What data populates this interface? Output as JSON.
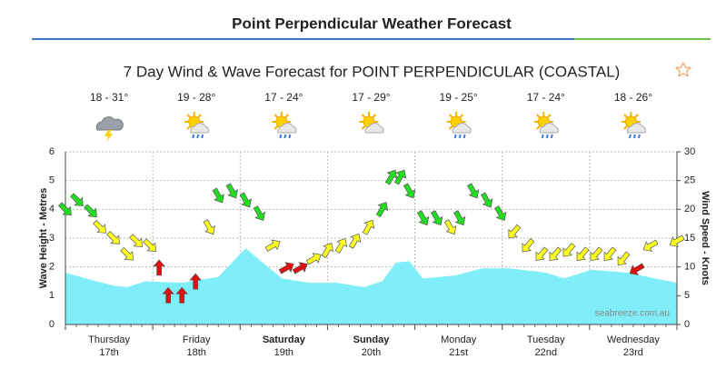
{
  "header": {
    "title": "Point Perpendicular Weather Forecast"
  },
  "chart_data": {
    "type": "wind-wave",
    "title": "7 Day Wind & Wave Forecast for POINT PERPENDICULAR (COASTAL)",
    "ylabel": "Wave Height - Metres",
    "y2label": "Wind Speed - Knots",
    "watermark": "seabreeze.com.au",
    "days": [
      {
        "name": "Thursday",
        "date": "17th",
        "temp": "18 - 31°",
        "bold": false,
        "icon": "storm"
      },
      {
        "name": "Friday",
        "date": "18th",
        "temp": "19 - 28°",
        "bold": false,
        "icon": "shower"
      },
      {
        "name": "Saturday",
        "date": "19th",
        "temp": "17 - 24°",
        "bold": true,
        "icon": "shower"
      },
      {
        "name": "Sunday",
        "date": "20th",
        "temp": "17 - 29°",
        "bold": true,
        "icon": "sun"
      },
      {
        "name": "Monday",
        "date": "21st",
        "temp": "19 - 25°",
        "bold": false,
        "icon": "shower"
      },
      {
        "name": "Tuesday",
        "date": "22nd",
        "temp": "17 - 24°",
        "bold": false,
        "icon": "shower"
      },
      {
        "name": "Wednesday",
        "date": "23rd",
        "temp": "18 - 26°",
        "bold": false,
        "icon": "shower"
      }
    ],
    "xlim": [
      0,
      168
    ],
    "xticks": [
      0,
      24,
      48,
      72,
      96,
      120,
      144,
      168
    ],
    "ylim": [
      0,
      6
    ],
    "yticks": [
      0,
      1,
      2,
      3,
      4,
      5,
      6
    ],
    "y2lim": [
      0,
      30
    ],
    "y2ticks": [
      0,
      5,
      10,
      15,
      20,
      25,
      30
    ],
    "grid": true,
    "series": [
      {
        "name": "Wave Height",
        "kind": "area",
        "color": "#80eef8",
        "x": [
          0,
          7,
          13.25,
          17,
          22,
          32,
          42,
          49.5,
          53.25,
          59.5,
          67,
          74.5,
          82,
          87,
          90.75,
          94.5,
          98.25,
          107,
          114.5,
          122,
          132,
          137,
          144.5,
          154.5,
          162,
          168
        ],
        "values": [
          1.8,
          1.55,
          1.35,
          1.3,
          1.5,
          1.45,
          1.65,
          2.65,
          2.25,
          1.6,
          1.45,
          1.45,
          1.3,
          1.5,
          2.15,
          2.2,
          1.6,
          1.7,
          1.95,
          1.95,
          1.8,
          1.6,
          1.9,
          1.8,
          1.6,
          1.45
        ]
      },
      {
        "name": "Wind Speed",
        "kind": "arrows",
        "axis": "y2",
        "x": [
          0,
          3.25,
          7,
          9.5,
          13.25,
          17,
          19.5,
          23.25,
          25.75,
          28.25,
          32,
          35.75,
          39.5,
          42,
          45.75,
          49.5,
          53.25,
          57,
          60.75,
          64.5,
          68.25,
          72,
          75.75,
          79.5,
          83.25,
          87,
          89.5,
          92,
          94.5,
          98.25,
          102,
          105.75,
          108.25,
          112,
          115.75,
          119.5,
          123.25,
          127,
          130.75,
          134.5,
          138.25,
          142,
          145.75,
          149.5,
          153.25,
          157,
          160.75,
          168
        ],
        "values": [
          20,
          21.6,
          19.7,
          16.9,
          15,
          12.2,
          14.5,
          13.7,
          9.8,
          5,
          5,
          7.4,
          16.9,
          22.4,
          23.2,
          21.6,
          19.3,
          13.7,
          9.8,
          9.8,
          11.4,
          12.9,
          13.7,
          14.5,
          16.9,
          20,
          25.6,
          25.6,
          23.2,
          18.5,
          18.5,
          16.9,
          18.5,
          23.2,
          21.6,
          19.3,
          16.1,
          13.7,
          12.2,
          12.2,
          12.9,
          12.2,
          12.2,
          12.2,
          11.4,
          9.6,
          13.7,
          14.5
        ],
        "directions": [
          135,
          135,
          135,
          135,
          135,
          135,
          135,
          135,
          0,
          0,
          0,
          0,
          150,
          150,
          150,
          150,
          150,
          60,
          60,
          60,
          60,
          30,
          30,
          30,
          30,
          30,
          30,
          30,
          150,
          150,
          150,
          150,
          150,
          150,
          150,
          150,
          220,
          220,
          220,
          220,
          220,
          220,
          220,
          220,
          220,
          240,
          240,
          240
        ],
        "colors": [
          "#22dd22",
          "#22dd22",
          "#22dd22",
          "#ffff22",
          "#ffff22",
          "#ffff22",
          "#ffff22",
          "#ffff22",
          "#e01010",
          "#e01010",
          "#e01010",
          "#e01010",
          "#ffff22",
          "#22dd22",
          "#22dd22",
          "#22dd22",
          "#22dd22",
          "#ffff22",
          "#e01010",
          "#e01010",
          "#ffff22",
          "#ffff22",
          "#ffff22",
          "#ffff22",
          "#ffff22",
          "#22dd22",
          "#22dd22",
          "#22dd22",
          "#22dd22",
          "#22dd22",
          "#22dd22",
          "#ffff22",
          "#22dd22",
          "#22dd22",
          "#22dd22",
          "#22dd22",
          "#ffff22",
          "#ffff22",
          "#ffff22",
          "#ffff22",
          "#ffff22",
          "#ffff22",
          "#ffff22",
          "#ffff22",
          "#ffff22",
          "#e01010",
          "#ffff22",
          "#ffff22"
        ]
      }
    ]
  }
}
